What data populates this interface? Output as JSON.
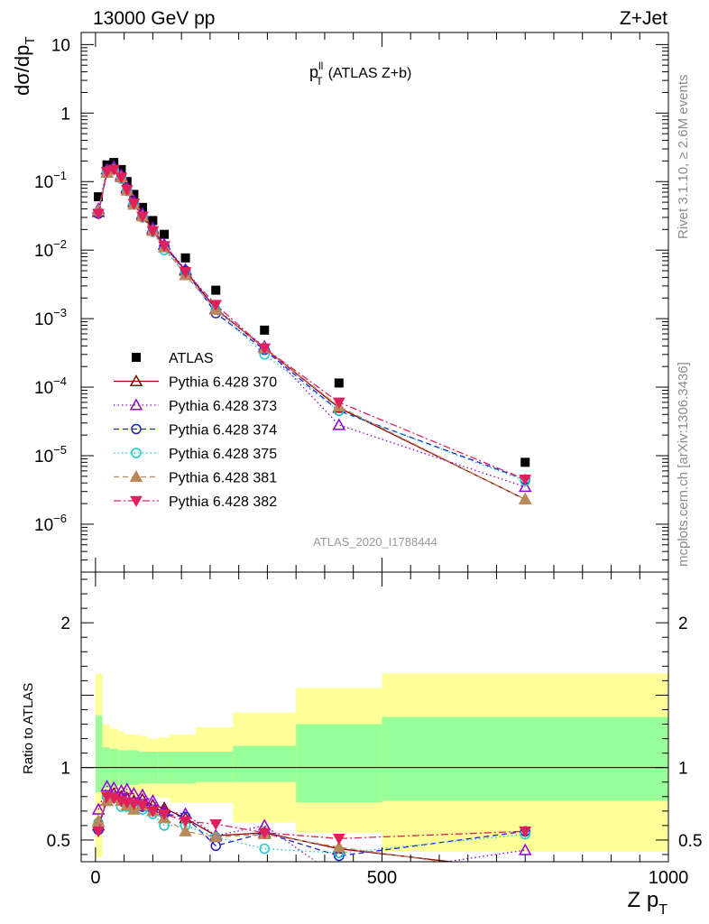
{
  "header": {
    "left": "13000 GeV pp",
    "right": "Z+Jet",
    "side_top": "Rivet 3.1.10, ≥ 2.6M events",
    "side_bottom": "mcplots.cern.ch [arXiv:1306.3436]"
  },
  "colors": {
    "ATLAS": "#000000",
    "p370": "#8b0000",
    "p373": "#9400d3",
    "p374": "#1f1fd6",
    "p375": "#20c8c8",
    "p381": "#b8895a",
    "p382": "#e0205a",
    "band_inner": "#99ff99",
    "band_outer": "#ffff99"
  },
  "chart_data": [
    {
      "type": "scatter",
      "title": "p_T^ll (ATLAS Z+b)",
      "title_main": "p",
      "title_sup": "ll",
      "title_sub": "T",
      "title_rest": "(ATLAS Z+b)",
      "ylabel": "dσ/dp_T",
      "ylabel_main": "dσ/dp",
      "ylabel_sub": "T",
      "watermark": "ATLAS_2020_I1788444",
      "yscale": "log",
      "ylim": [
        2e-07,
        15
      ],
      "xlim": [
        -25,
        1000
      ],
      "y_ticks": [
        {
          "v": 10,
          "label": "10",
          "exp": ""
        },
        {
          "v": 1,
          "label": "1",
          "exp": ""
        },
        {
          "v": 0.1,
          "label": "10",
          "exp": "−1"
        },
        {
          "v": 0.01,
          "label": "10",
          "exp": "−2"
        },
        {
          "v": 0.001,
          "label": "10",
          "exp": "−3"
        },
        {
          "v": 0.0001,
          "label": "10",
          "exp": "−4"
        },
        {
          "v": 1e-05,
          "label": "10",
          "exp": "−5"
        },
        {
          "v": 1e-06,
          "label": "10",
          "exp": "−6"
        }
      ],
      "legend_position": "middle-left",
      "x": [
        5,
        20,
        32,
        45,
        55,
        67,
        82,
        100,
        120,
        157,
        210,
        295,
        425,
        750
      ],
      "series": [
        {
          "name": "ATLAS",
          "key": "ATLAS",
          "marker": "square",
          "line": "none",
          "values": [
            0.06,
            0.175,
            0.19,
            0.15,
            0.1,
            0.065,
            0.042,
            0.027,
            0.017,
            0.0077,
            0.0026,
            0.00068,
            0.000115,
            8e-06
          ]
        },
        {
          "name": "Pythia 6.428 370",
          "key": "p370",
          "marker": "triangle-up-open",
          "line": "solid",
          "values": [
            0.036,
            0.135,
            0.155,
            0.12,
            0.079,
            0.05,
            0.033,
            0.02,
            0.012,
            0.005,
            0.00138,
            0.00037,
            5e-05,
            2.3e-06
          ]
        },
        {
          "name": "Pythia 6.428 373",
          "key": "p373",
          "marker": "triangle-up-open",
          "line": "dotted",
          "values": [
            0.04,
            0.15,
            0.165,
            0.125,
            0.083,
            0.052,
            0.034,
            0.021,
            0.012,
            0.0052,
            0.0014,
            0.00039,
            2.8e-05,
            3.5e-06
          ]
        },
        {
          "name": "Pythia 6.428 374",
          "key": "p374",
          "marker": "circle-open",
          "line": "dashed",
          "values": [
            0.034,
            0.14,
            0.155,
            0.115,
            0.074,
            0.048,
            0.031,
            0.019,
            0.0115,
            0.005,
            0.0012,
            0.00035,
            4.5e-05,
            4.5e-06
          ]
        },
        {
          "name": "Pythia 6.428 375",
          "key": "p375",
          "marker": "circle-open",
          "line": "dotted",
          "values": [
            0.036,
            0.14,
            0.15,
            0.11,
            0.073,
            0.047,
            0.03,
            0.0185,
            0.01,
            0.0046,
            0.00135,
            0.0003,
            4.5e-05,
            4.3e-06
          ]
        },
        {
          "name": "Pythia 6.428 381",
          "key": "p381",
          "marker": "triangle-up-filled",
          "line": "dashed",
          "values": [
            0.038,
            0.135,
            0.15,
            0.115,
            0.074,
            0.046,
            0.031,
            0.019,
            0.011,
            0.0043,
            0.00135,
            0.00037,
            5.2e-05,
            2.3e-06
          ]
        },
        {
          "name": "Pythia 6.428 382",
          "key": "p382",
          "marker": "triangle-down-filled",
          "line": "dashdot",
          "values": [
            0.034,
            0.14,
            0.15,
            0.115,
            0.076,
            0.048,
            0.031,
            0.019,
            0.0115,
            0.0048,
            0.0016,
            0.00037,
            6e-05,
            4.5e-06
          ]
        }
      ]
    },
    {
      "type": "line",
      "ylabel": "Ratio to ATLAS",
      "xlabel": "Z p_T",
      "xlabel_main": "Z p",
      "xlabel_sub": "T",
      "ylim": [
        0.35,
        2.35
      ],
      "xlim": [
        -25,
        1000
      ],
      "x_ticks": [
        0,
        500,
        1000
      ],
      "y_ticks": [
        0.5,
        1,
        2
      ],
      "reference": 1,
      "bands": {
        "edges": [
          0,
          12,
          25,
          40,
          50,
          60,
          75,
          90,
          110,
          130,
          175,
          240,
          350,
          500,
          1000
        ],
        "inner_lo": [
          0.83,
          0.86,
          0.87,
          0.88,
          0.88,
          0.88,
          0.89,
          0.89,
          0.89,
          0.89,
          0.9,
          0.9,
          0.76,
          0.77
        ],
        "inner_hi": [
          1.36,
          1.14,
          1.13,
          1.12,
          1.12,
          1.12,
          1.11,
          1.11,
          1.11,
          1.11,
          1.11,
          1.15,
          1.3,
          1.35
        ],
        "outer_lo": [
          0.38,
          0.81,
          0.82,
          0.82,
          0.8,
          0.8,
          0.82,
          0.8,
          0.79,
          0.76,
          0.76,
          0.62,
          0.55,
          0.42
        ],
        "outer_hi": [
          1.65,
          1.3,
          1.27,
          1.25,
          1.23,
          1.23,
          1.22,
          1.2,
          1.21,
          1.23,
          1.28,
          1.38,
          1.55,
          1.65
        ]
      },
      "x": [
        5,
        20,
        32,
        45,
        55,
        67,
        82,
        100,
        120,
        157,
        210,
        295,
        425,
        750
      ],
      "series": [
        {
          "key": "p370",
          "marker": "triangle-up-open",
          "line": "solid",
          "values": [
            0.6,
            0.77,
            0.82,
            0.8,
            0.79,
            0.77,
            0.78,
            0.74,
            0.72,
            0.65,
            0.53,
            0.55,
            0.44,
            0.29
          ]
        },
        {
          "key": "p373",
          "marker": "triangle-up-open",
          "line": "dotted",
          "values": [
            0.71,
            0.87,
            0.86,
            0.84,
            0.85,
            0.82,
            0.81,
            0.77,
            0.7,
            0.68,
            0.53,
            0.6,
            0.24,
            0.43
          ]
        },
        {
          "key": "p374",
          "marker": "circle-open",
          "line": "dashed",
          "values": [
            0.57,
            0.8,
            0.79,
            0.77,
            0.74,
            0.74,
            0.73,
            0.7,
            0.68,
            0.66,
            0.46,
            0.55,
            0.39,
            0.56
          ]
        },
        {
          "key": "p375",
          "marker": "circle-open",
          "line": "dotted",
          "values": [
            0.62,
            0.8,
            0.79,
            0.73,
            0.73,
            0.72,
            0.71,
            0.68,
            0.6,
            0.6,
            0.52,
            0.44,
            0.41,
            0.54
          ]
        },
        {
          "key": "p381",
          "marker": "triangle-up-filled",
          "line": "dashed",
          "values": [
            0.63,
            0.77,
            0.79,
            0.77,
            0.74,
            0.71,
            0.74,
            0.7,
            0.65,
            0.56,
            0.52,
            0.54,
            0.45,
            0.27
          ]
        },
        {
          "key": "p382",
          "marker": "triangle-down-filled",
          "line": "dashdot",
          "values": [
            0.56,
            0.8,
            0.79,
            0.77,
            0.76,
            0.75,
            0.74,
            0.7,
            0.68,
            0.63,
            0.61,
            0.55,
            0.51,
            0.56
          ]
        }
      ]
    }
  ]
}
